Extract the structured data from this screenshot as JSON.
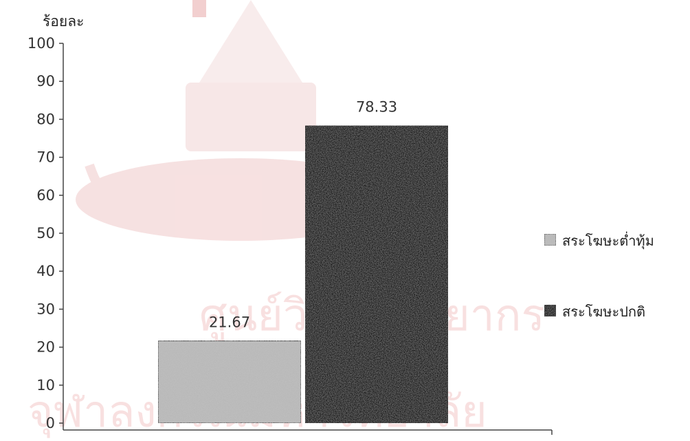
{
  "chart_data": {
    "type": "bar",
    "ylabel": "ร้อยละ",
    "xlabel": "",
    "ylim": [
      0,
      100
    ],
    "yticks": [
      0,
      10,
      20,
      30,
      40,
      50,
      60,
      70,
      80,
      90,
      100
    ],
    "grid": false,
    "legend_position": "right",
    "series": [
      {
        "name": "สระโฆษะต่ำทุ้ม",
        "values": [
          21.67
        ],
        "color": "#b8b8b8",
        "pattern": "light-stipple"
      },
      {
        "name": "สระโฆษะปกติ",
        "values": [
          78.33
        ],
        "color": "#1e1e1e",
        "pattern": "dark-stipple"
      }
    ],
    "data_labels": [
      "21.67",
      "78.33"
    ]
  },
  "watermark": {
    "seal_color": "#d9a3a3",
    "text_line1": "ศูนย์วิทยทรัพยากร",
    "text_line2": "จุฬาลงกรณ์มหาวิทยาลัย",
    "color": "#f1c4c4"
  }
}
